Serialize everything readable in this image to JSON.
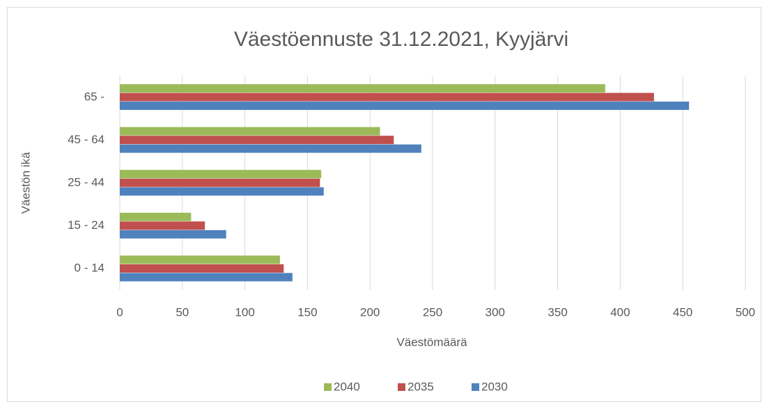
{
  "chart_data": {
    "type": "bar",
    "orientation": "horizontal",
    "title": "Väestöennuste 31.12.2021, Kyyjärvi",
    "x_label": "Väestömäärä",
    "y_label": "Väestön ikä",
    "categories": [
      "0 - 14",
      "15 - 24",
      "25 - 44",
      "45 - 64",
      "65 -"
    ],
    "series": [
      {
        "name": "2040",
        "color": "#9bbb59",
        "values": [
          128,
          57,
          161,
          208,
          388
        ]
      },
      {
        "name": "2035",
        "color": "#c0504d",
        "values": [
          131,
          68,
          160,
          219,
          427
        ]
      },
      {
        "name": "2030",
        "color": "#4f81bd",
        "values": [
          138,
          85,
          163,
          241,
          455
        ]
      }
    ],
    "xlim": [
      0,
      500
    ],
    "xticks": [
      0,
      50,
      100,
      150,
      200,
      250,
      300,
      350,
      400,
      450,
      500
    ],
    "grid": true,
    "legend": "bottom"
  }
}
